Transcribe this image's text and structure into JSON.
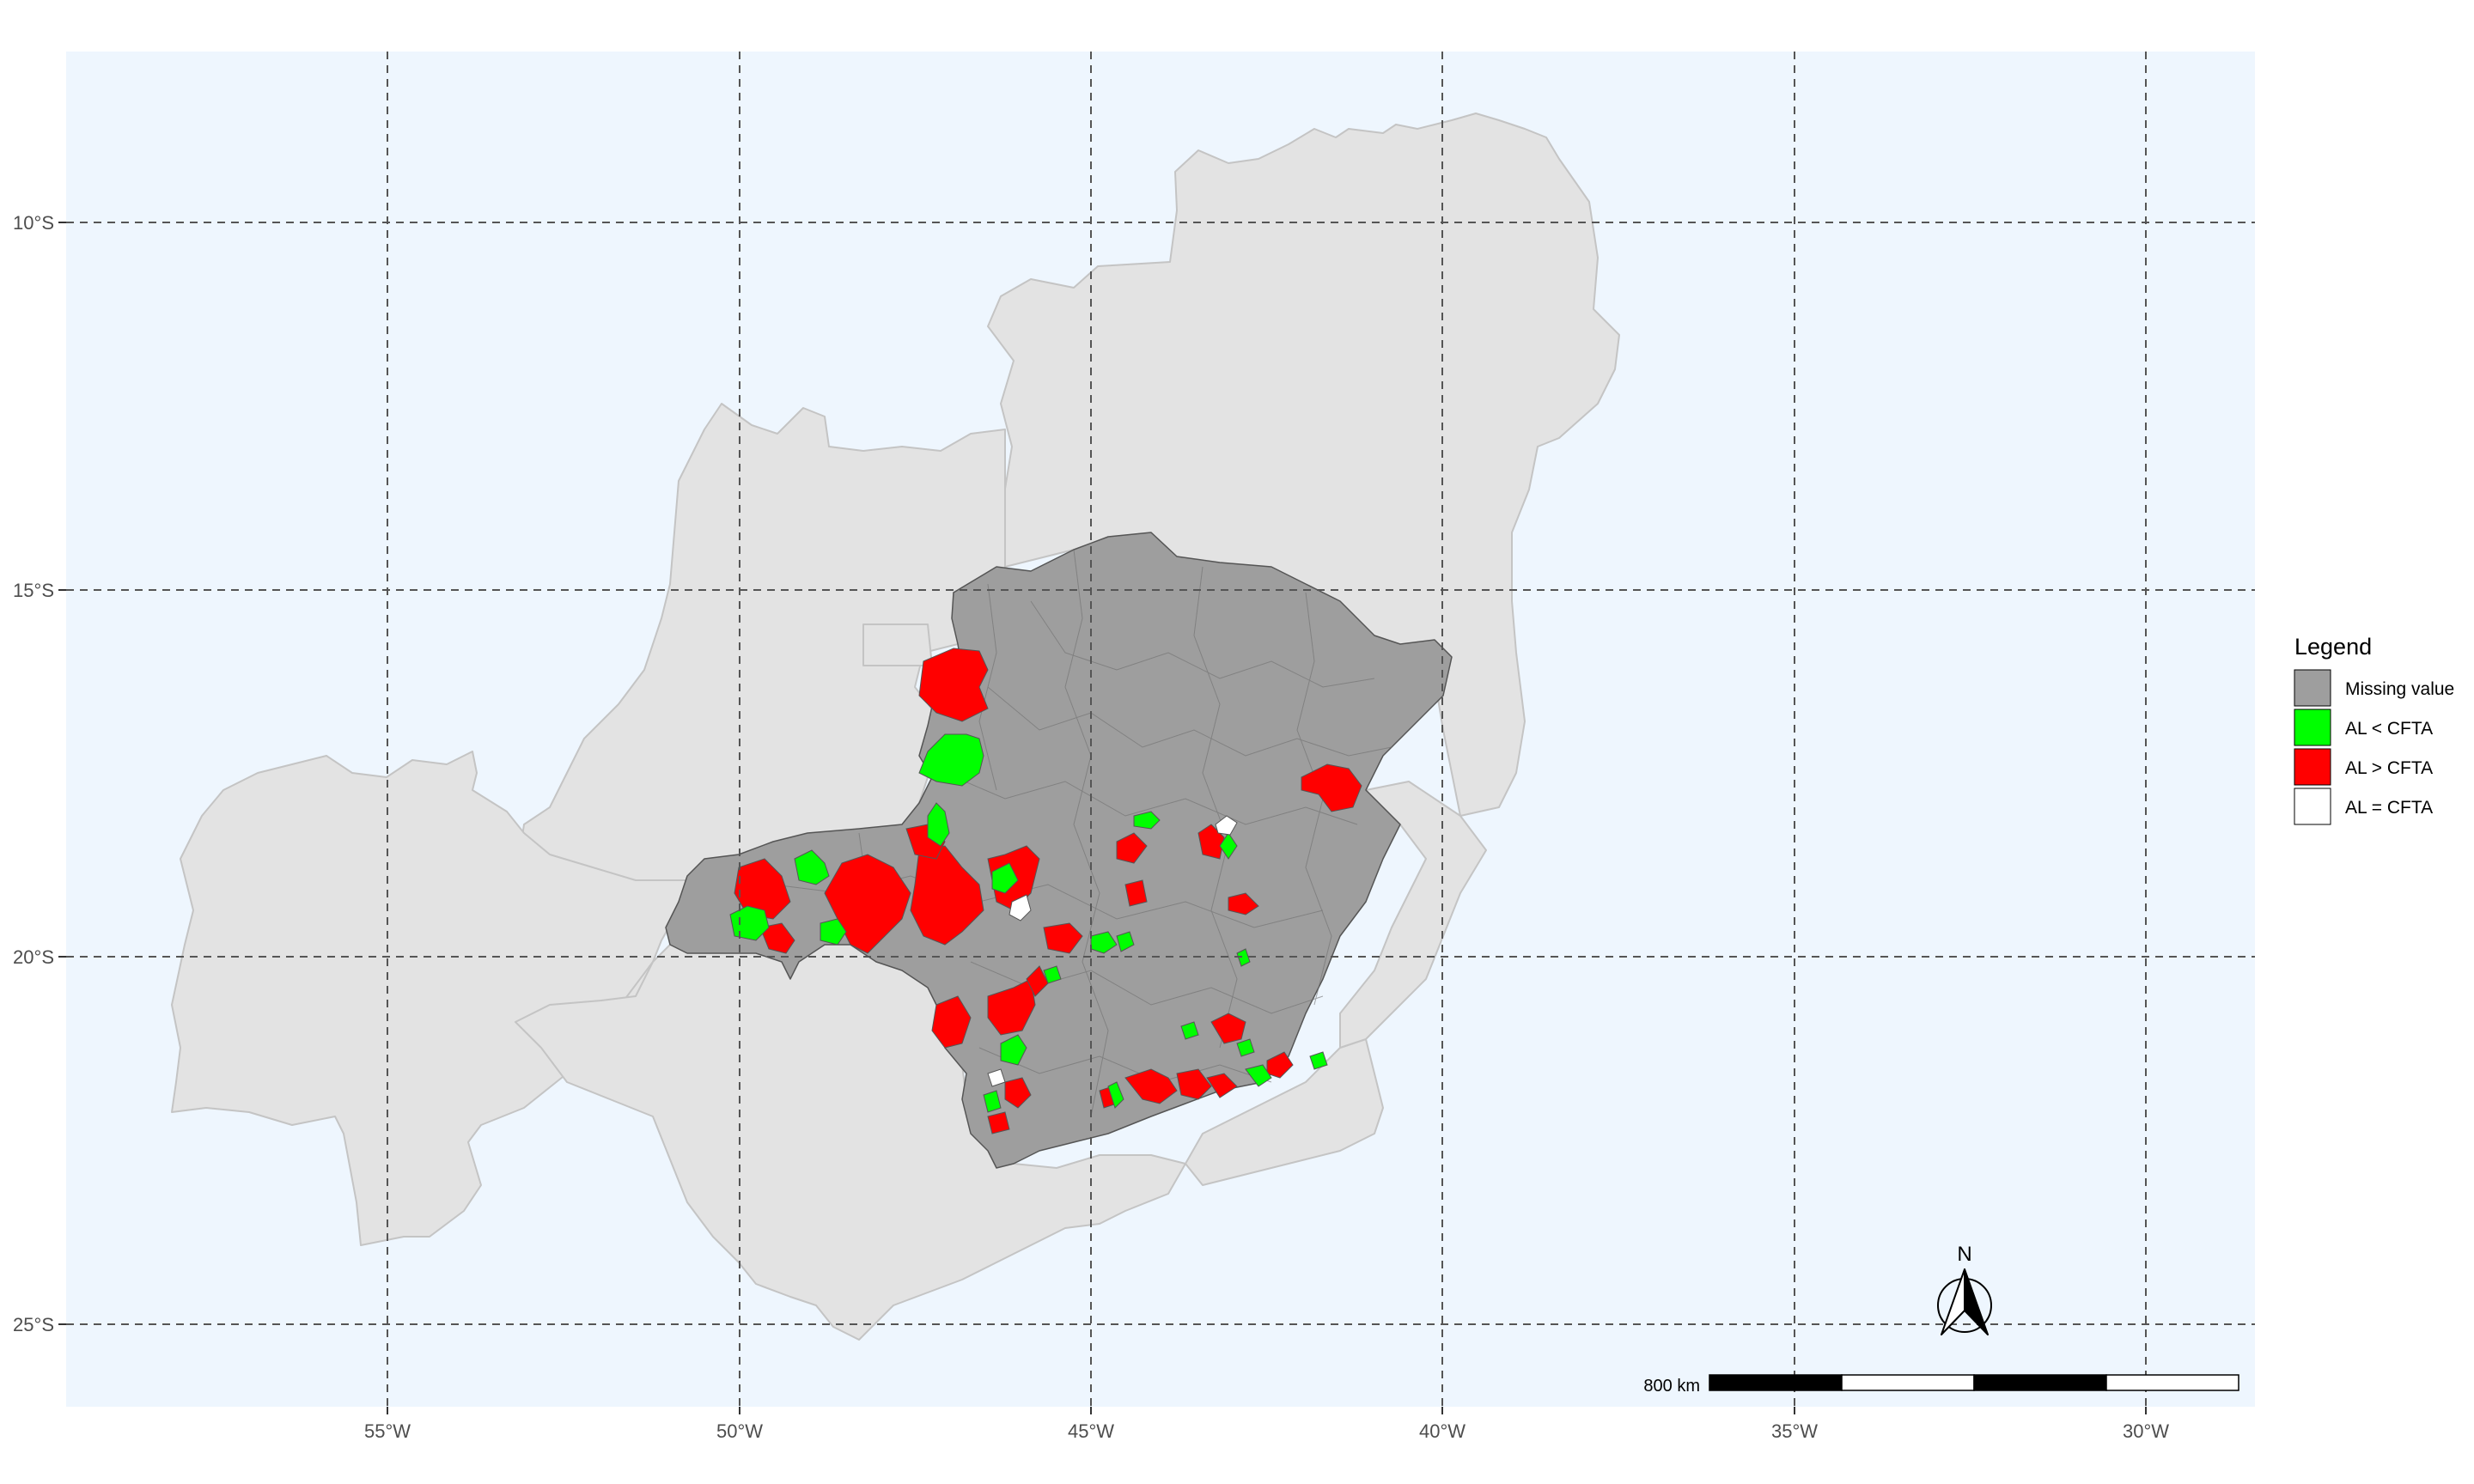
{
  "map": {
    "x_ticks": [
      "55°W",
      "50°W",
      "45°W",
      "40°W",
      "35°W",
      "30°W"
    ],
    "y_ticks": [
      "10°S",
      "15°S",
      "20°S",
      "25°S"
    ],
    "colors": {
      "panel": "#eef6fe",
      "grid": "#555555",
      "context_region": "#e3e3e3",
      "context_border": "#c4c4c4",
      "missing": "#9e9e9e",
      "al_less": "#00ff00",
      "al_greater": "#ff0000",
      "al_equal": "#ffffff"
    }
  },
  "legend": {
    "title": "Legend",
    "items": [
      {
        "label": "Missing value",
        "color": "#9e9e9e"
      },
      {
        "label": "AL < CFTA",
        "color": "#00ff00"
      },
      {
        "label": "AL > CFTA",
        "color": "#ff0000"
      },
      {
        "label": "AL = CFTA",
        "color": "#ffffff"
      }
    ]
  },
  "scale_bar": {
    "label": "800 km"
  },
  "north_arrow": {
    "label": "N"
  }
}
